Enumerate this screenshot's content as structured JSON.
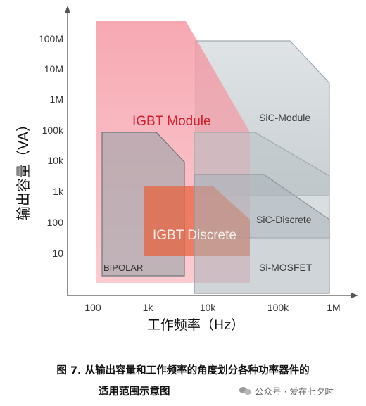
{
  "diagram": {
    "y_axis_title": "输出容量（VA）",
    "x_axis_title": "工作频率（Hz）",
    "y_ticks": [
      "100M",
      "10M",
      "1M",
      "100k",
      "10k",
      "1k",
      "100",
      "10"
    ],
    "x_ticks": [
      "100",
      "1k",
      "10k",
      "100k",
      "1M"
    ],
    "regions": [
      {
        "label": "IGBT Module",
        "color": "#f48c98"
      },
      {
        "label": "SiC-Module",
        "color": "#b5bfc5"
      },
      {
        "label": "BIPOLAR",
        "color": "#9aa3a8"
      },
      {
        "label": "SiC-Discrete",
        "color": "#b5bfc5"
      },
      {
        "label": "IGBT Discrete",
        "color": "#e6603a"
      },
      {
        "label": "Si-MOSFET",
        "color": "#a9b3b9"
      }
    ]
  },
  "caption": {
    "line1": "图 7. 从输出容量和工作频率的角度划分各种功率器件的",
    "line2": "适用范围示意图"
  },
  "watermark": {
    "icon": "wechat-icon",
    "text": "公众号 · 爱在七夕时"
  }
}
